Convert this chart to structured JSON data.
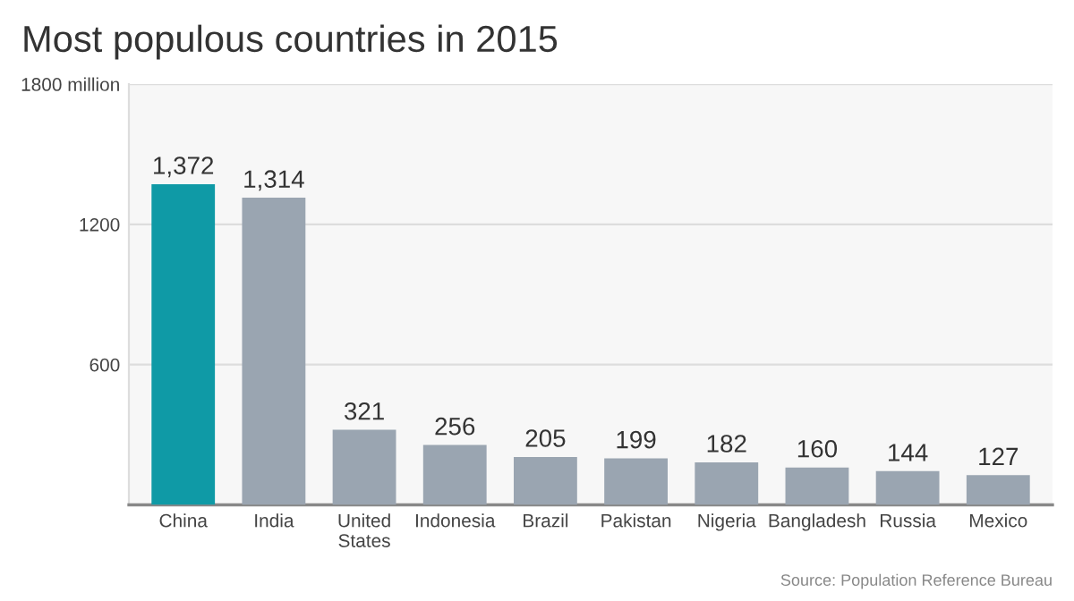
{
  "chart_data": {
    "type": "bar",
    "title": "Most populous countries in 2015",
    "categories": [
      "China",
      "India",
      "United\nStates",
      "Indonesia",
      "Brazil",
      "Pakistan",
      "Nigeria",
      "Bangladesh",
      "Russia",
      "Mexico"
    ],
    "values": [
      1372,
      1314,
      321,
      256,
      205,
      199,
      182,
      160,
      144,
      127
    ],
    "value_labels": [
      "1,372",
      "1,314",
      "321",
      "256",
      "205",
      "199",
      "182",
      "160",
      "144",
      "127"
    ],
    "colors": [
      "#0f9aa6",
      "#9aa5b1",
      "#9aa5b1",
      "#9aa5b1",
      "#9aa5b1",
      "#9aa5b1",
      "#9aa5b1",
      "#9aa5b1",
      "#9aa5b1",
      "#9aa5b1"
    ],
    "ylim": [
      0,
      1800
    ],
    "yticks": [
      600,
      1200,
      {
        "value": 1800,
        "label": "1800 million"
      }
    ],
    "grid": "y",
    "annotations": [
      "Source: Population Reference Bureau"
    ]
  }
}
